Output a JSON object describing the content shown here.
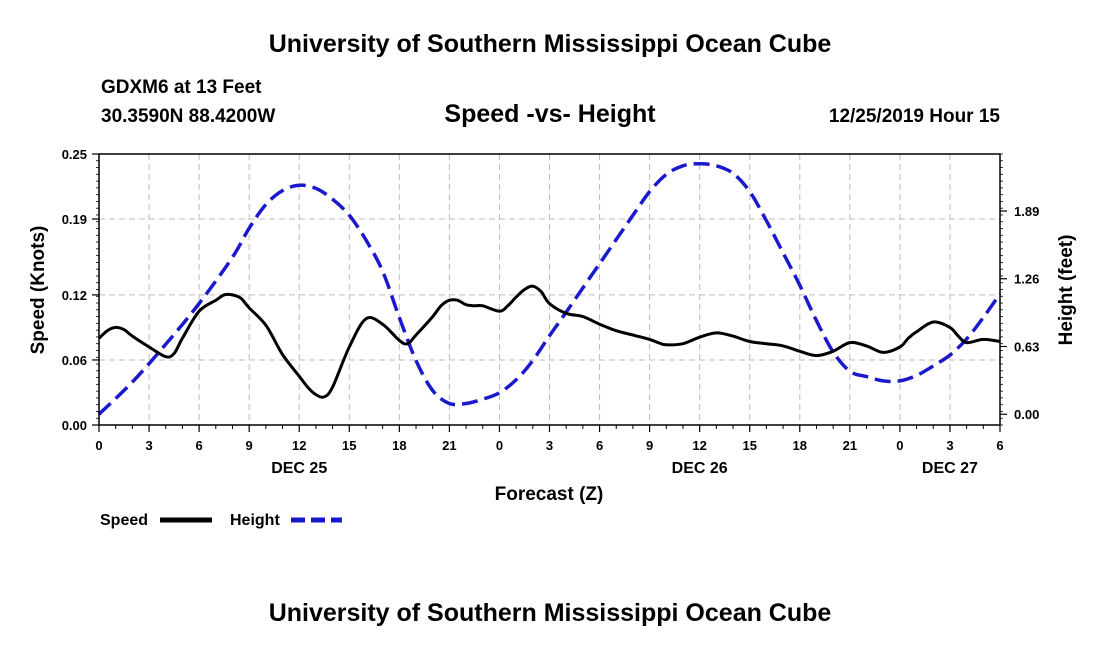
{
  "header": {
    "title": "University of Southern Mississippi Ocean Cube",
    "station": "GDXM6 at 13 Feet",
    "coords": "30.3590N 88.4200W",
    "datetime": "12/25/2019 Hour 15"
  },
  "footer": {
    "title": "University of Southern Mississippi Ocean Cube"
  },
  "chart_data": {
    "type": "line",
    "title": "Speed -vs- Height",
    "xlabel": "Forecast (Z)",
    "ylabel": "Speed (Knots)",
    "y2label": "Height (feet)",
    "xlim": [
      0,
      54
    ],
    "ylim": [
      0,
      0.25
    ],
    "y2lim": [
      -0.1,
      2.42
    ],
    "grid": true,
    "x_ticks": [
      0,
      3,
      6,
      9,
      12,
      15,
      18,
      21,
      24,
      27,
      30,
      33,
      36,
      39,
      42,
      45,
      48,
      51,
      54
    ],
    "x_tick_labels": [
      "0",
      "3",
      "6",
      "9",
      "12",
      "15",
      "18",
      "21",
      "0",
      "3",
      "6",
      "9",
      "12",
      "15",
      "18",
      "21",
      "0",
      "3",
      "6"
    ],
    "date_labels": [
      {
        "x": 12,
        "label": "DEC 25"
      },
      {
        "x": 36,
        "label": "DEC 26"
      },
      {
        "x": 51,
        "label": "DEC 27"
      }
    ],
    "y_ticks": [
      0.0,
      0.06,
      0.12,
      0.19,
      0.25
    ],
    "y_tick_labels": [
      "0.00",
      "0.06",
      "0.12",
      "0.19",
      "0.25"
    ],
    "y2_ticks": [
      0.0,
      0.63,
      1.26,
      1.89
    ],
    "y2_tick_labels": [
      "0.00",
      "0.63",
      "1.26",
      "1.89"
    ],
    "series": [
      {
        "name": "Speed",
        "axis": "left",
        "color": "#000000",
        "style": "solid",
        "x": [
          0,
          0.5,
          1,
          1.5,
          2,
          3,
          4,
          4.5,
          5,
          6,
          7,
          7.5,
          8,
          8.5,
          9,
          10,
          11,
          12,
          12.5,
          13,
          13.5,
          14,
          15,
          16,
          17,
          18,
          18.5,
          19,
          20,
          20.5,
          21,
          21.5,
          22,
          22.5,
          23,
          24,
          24.5,
          25,
          25.5,
          26,
          26.5,
          27,
          28,
          29,
          30,
          31,
          32,
          33,
          33.5,
          34,
          35,
          36,
          37,
          38,
          39,
          40,
          41,
          42,
          43,
          44,
          45,
          46,
          47,
          48,
          48.5,
          49,
          50,
          51,
          51.5,
          52,
          53,
          54
        ],
        "values": [
          0.08,
          0.087,
          0.09,
          0.088,
          0.082,
          0.072,
          0.063,
          0.066,
          0.08,
          0.105,
          0.115,
          0.12,
          0.12,
          0.117,
          0.108,
          0.092,
          0.065,
          0.045,
          0.035,
          0.028,
          0.026,
          0.035,
          0.072,
          0.098,
          0.093,
          0.078,
          0.075,
          0.083,
          0.1,
          0.11,
          0.115,
          0.115,
          0.111,
          0.11,
          0.11,
          0.105,
          0.11,
          0.118,
          0.125,
          0.128,
          0.123,
          0.112,
          0.103,
          0.1,
          0.093,
          0.087,
          0.083,
          0.079,
          0.076,
          0.074,
          0.075,
          0.081,
          0.085,
          0.082,
          0.077,
          0.075,
          0.073,
          0.068,
          0.064,
          0.068,
          0.076,
          0.073,
          0.067,
          0.072,
          0.08,
          0.086,
          0.095,
          0.09,
          0.082,
          0.076,
          0.079,
          0.077
        ]
      },
      {
        "name": "Height",
        "axis": "right",
        "color": "#1a1acc",
        "style": "dashed",
        "x": [
          0,
          2,
          4,
          6,
          8,
          9,
          10,
          11,
          12,
          13,
          14,
          15,
          16,
          17,
          18,
          19,
          20,
          21,
          22,
          23,
          24,
          25,
          26,
          27,
          28,
          30,
          32,
          33,
          34,
          35,
          36,
          37,
          38,
          39,
          40,
          41,
          42,
          43,
          44,
          45,
          46,
          47,
          48,
          49,
          50,
          51,
          52,
          53,
          54
        ],
        "values": [
          0.0,
          0.3,
          0.65,
          1.03,
          1.46,
          1.73,
          1.95,
          2.08,
          2.13,
          2.1,
          2.0,
          1.85,
          1.62,
          1.33,
          0.9,
          0.5,
          0.22,
          0.1,
          0.1,
          0.14,
          0.2,
          0.32,
          0.5,
          0.73,
          0.95,
          1.4,
          1.85,
          2.07,
          2.23,
          2.31,
          2.33,
          2.31,
          2.24,
          2.07,
          1.8,
          1.5,
          1.2,
          0.87,
          0.58,
          0.4,
          0.35,
          0.31,
          0.31,
          0.36,
          0.45,
          0.55,
          0.7,
          0.9,
          1.12
        ]
      }
    ],
    "legend": {
      "placement": "bottom-left",
      "entries": [
        {
          "label": "Speed",
          "color": "#000000",
          "style": "solid"
        },
        {
          "label": "Height",
          "color": "#1a1acc",
          "style": "dashed"
        }
      ]
    }
  }
}
